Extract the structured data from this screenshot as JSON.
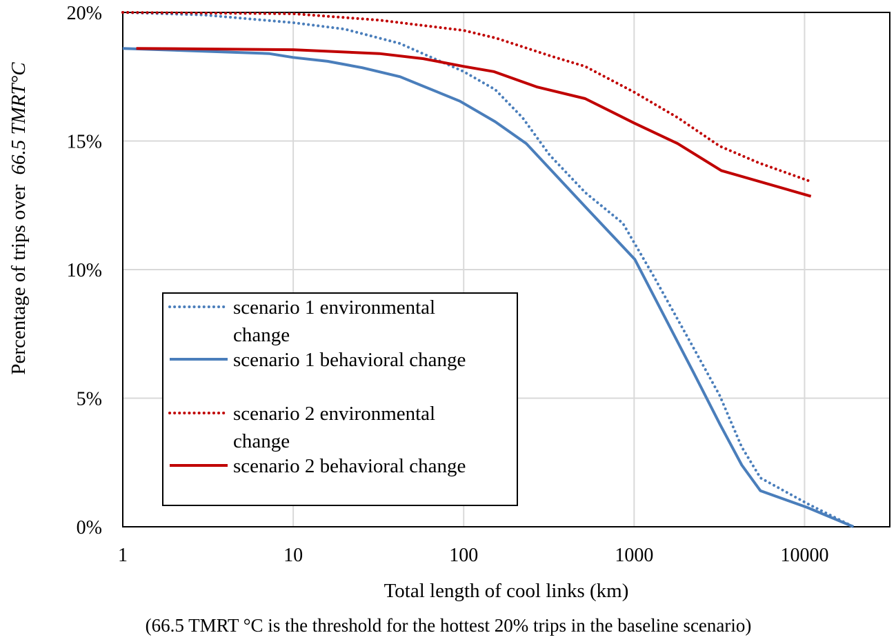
{
  "chart_data": {
    "type": "line",
    "title": "",
    "xlabel": "Total length of cool links (km)",
    "ylabel_prefix": "Percentage of trips over",
    "ylabel_italic": "66.5 TMRT°C",
    "caption": "(66.5 TMRT °C is the threshold for the hottest 20% trips in the baseline scenario)",
    "x_scale": "log",
    "xlim": [
      1,
      31623
    ],
    "ylim": [
      0,
      20
    ],
    "grid": true,
    "x_ticks": [
      1,
      10,
      100,
      1000,
      10000
    ],
    "x_tick_labels": [
      "1",
      "10",
      "100",
      "1000",
      "10000"
    ],
    "y_ticks": [
      0,
      5,
      10,
      15,
      20
    ],
    "y_tick_labels": [
      "0%",
      "5%",
      "10%",
      "15%",
      "20%"
    ],
    "legend_position": "lower-left",
    "series": [
      {
        "name": "scenario 1 environmental change",
        "legend_lines": [
          "scenario 1 environmental",
          "change"
        ],
        "color": "#4a7ebb",
        "style": "dotted",
        "x": [
          1,
          3,
          10,
          20,
          42,
          73,
          100,
          153,
          222,
          320,
          516,
          860,
          1300,
          2170,
          3180,
          4280,
          5510,
          10380,
          19370
        ],
        "y": [
          20,
          19.9,
          19.6,
          19.35,
          18.8,
          18.1,
          17.7,
          17.0,
          15.9,
          14.45,
          13.0,
          11.8,
          9.75,
          7.1,
          5.1,
          3.1,
          1.9,
          0.9,
          0
        ]
      },
      {
        "name": "scenario 1 behavioral change",
        "legend_lines": [
          "scenario 1 behavioral change"
        ],
        "color": "#4a7ebb",
        "style": "solid",
        "x": [
          1,
          7.2,
          10,
          15.9,
          25.4,
          42.4,
          95,
          153,
          233,
          516,
          1009,
          2230,
          3180,
          4280,
          5510,
          10380,
          19370
        ],
        "y": [
          18.6,
          18.4,
          18.25,
          18.1,
          17.85,
          17.5,
          16.55,
          15.75,
          14.9,
          12.45,
          10.4,
          6.0,
          4.0,
          2.4,
          1.4,
          0.75,
          0
        ]
      },
      {
        "name": "scenario 2 environmental change",
        "legend_lines": [
          "scenario 2 environmental",
          "change"
        ],
        "color": "#c00000",
        "style": "dotted",
        "x": [
          1,
          10,
          32,
          100,
          155,
          326,
          516,
          1000,
          1810,
          3180,
          5390,
          10600
        ],
        "y": [
          20,
          19.95,
          19.7,
          19.3,
          19.0,
          18.3,
          17.9,
          16.9,
          15.9,
          14.8,
          14.15,
          13.45
        ]
      },
      {
        "name": "scenario 2 behavioral change",
        "legend_lines": [
          "scenario 2 behavioral change"
        ],
        "color": "#c00000",
        "style": "solid",
        "x": [
          1.2,
          10,
          32,
          58,
          100,
          150,
          270,
          516,
          1000,
          1800,
          3250,
          10900
        ],
        "y": [
          18.6,
          18.55,
          18.4,
          18.2,
          17.9,
          17.7,
          17.1,
          16.65,
          15.7,
          14.9,
          13.85,
          12.85
        ]
      }
    ]
  }
}
